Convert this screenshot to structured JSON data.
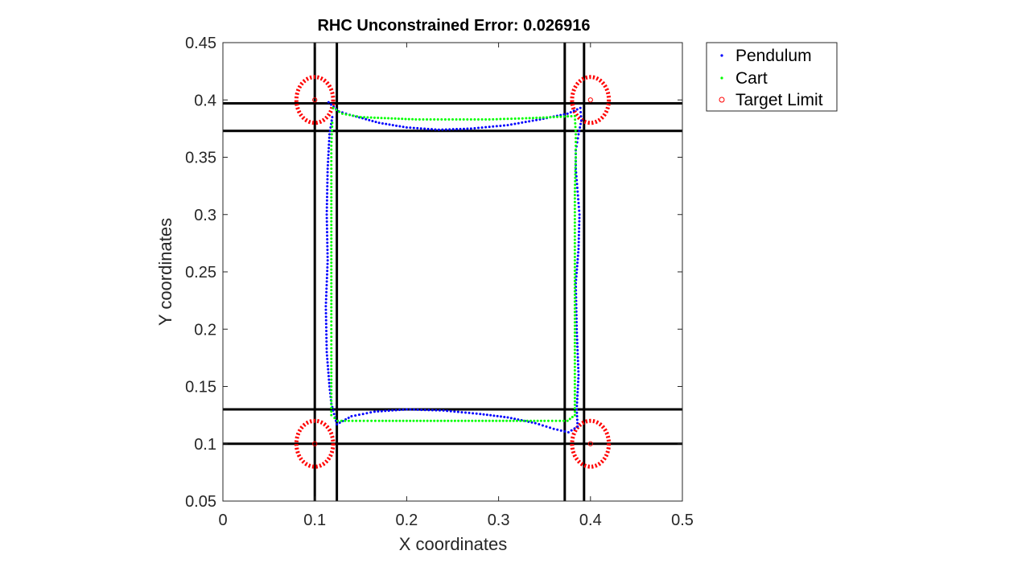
{
  "chart_data": {
    "type": "scatter",
    "title": "RHC Unconstrained Error: 0.026916",
    "xlabel": "X coordinates",
    "ylabel": "Y coordinates",
    "xlim": [
      0,
      0.5
    ],
    "ylim": [
      0.05,
      0.45
    ],
    "xticks": [
      "0",
      "0.1",
      "0.2",
      "0.3",
      "0.4",
      "0.5"
    ],
    "yticks": [
      "0.05",
      "0.1",
      "0.15",
      "0.2",
      "0.25",
      "0.3",
      "0.35",
      "0.4",
      "0.45"
    ],
    "grid": false,
    "legend_position": "outside-top-right",
    "colors": {
      "pendulum": "#0000ff",
      "cart": "#00ff00",
      "target": "#ff0000",
      "boundary": "#000000",
      "axes": "#262626"
    },
    "boundary_lines": {
      "vertical_x": [
        0.1,
        0.124,
        0.372,
        0.393
      ],
      "horizontal_y": [
        0.1,
        0.13,
        0.373,
        0.397
      ]
    },
    "targets": [
      {
        "x": 0.1,
        "y": 0.4,
        "radius": 0.02
      },
      {
        "x": 0.4,
        "y": 0.4,
        "radius": 0.02
      },
      {
        "x": 0.4,
        "y": 0.1,
        "radius": 0.02
      },
      {
        "x": 0.1,
        "y": 0.1,
        "radius": 0.02
      }
    ],
    "series": [
      {
        "name": "Pendulum",
        "marker": "dot",
        "points": [
          [
            0.115,
            0.398
          ],
          [
            0.126,
            0.39
          ],
          [
            0.138,
            0.387
          ],
          [
            0.152,
            0.384
          ],
          [
            0.17,
            0.38
          ],
          [
            0.2,
            0.376
          ],
          [
            0.235,
            0.374
          ],
          [
            0.27,
            0.375
          ],
          [
            0.31,
            0.378
          ],
          [
            0.345,
            0.383
          ],
          [
            0.375,
            0.388
          ],
          [
            0.389,
            0.393
          ],
          [
            0.39,
            0.382
          ],
          [
            0.387,
            0.37
          ],
          [
            0.384,
            0.356
          ],
          [
            0.384,
            0.34
          ],
          [
            0.386,
            0.32
          ],
          [
            0.388,
            0.3
          ],
          [
            0.387,
            0.27
          ],
          [
            0.384,
            0.24
          ],
          [
            0.385,
            0.2
          ],
          [
            0.387,
            0.16
          ],
          [
            0.385,
            0.13
          ],
          [
            0.386,
            0.115
          ],
          [
            0.376,
            0.11
          ],
          [
            0.36,
            0.113
          ],
          [
            0.34,
            0.118
          ],
          [
            0.31,
            0.123
          ],
          [
            0.28,
            0.126
          ],
          [
            0.24,
            0.129
          ],
          [
            0.2,
            0.13
          ],
          [
            0.165,
            0.128
          ],
          [
            0.14,
            0.124
          ],
          [
            0.124,
            0.117
          ],
          [
            0.118,
            0.135
          ],
          [
            0.116,
            0.15
          ],
          [
            0.113,
            0.18
          ],
          [
            0.112,
            0.22
          ],
          [
            0.114,
            0.26
          ],
          [
            0.113,
            0.3
          ],
          [
            0.114,
            0.34
          ],
          [
            0.116,
            0.37
          ],
          [
            0.119,
            0.385
          ]
        ]
      },
      {
        "name": "Cart",
        "marker": "dot",
        "points": [
          [
            0.12,
            0.393
          ],
          [
            0.13,
            0.388
          ],
          [
            0.15,
            0.385
          ],
          [
            0.18,
            0.384
          ],
          [
            0.21,
            0.383
          ],
          [
            0.25,
            0.383
          ],
          [
            0.29,
            0.383
          ],
          [
            0.33,
            0.384
          ],
          [
            0.36,
            0.385
          ],
          [
            0.383,
            0.386
          ],
          [
            0.384,
            0.37
          ],
          [
            0.384,
            0.35
          ],
          [
            0.383,
            0.32
          ],
          [
            0.383,
            0.29
          ],
          [
            0.383,
            0.26
          ],
          [
            0.383,
            0.23
          ],
          [
            0.383,
            0.2
          ],
          [
            0.383,
            0.17
          ],
          [
            0.383,
            0.14
          ],
          [
            0.383,
            0.125
          ],
          [
            0.375,
            0.12
          ],
          [
            0.35,
            0.12
          ],
          [
            0.32,
            0.12
          ],
          [
            0.29,
            0.12
          ],
          [
            0.26,
            0.12
          ],
          [
            0.23,
            0.12
          ],
          [
            0.2,
            0.12
          ],
          [
            0.17,
            0.12
          ],
          [
            0.145,
            0.12
          ],
          [
            0.125,
            0.12
          ],
          [
            0.118,
            0.125
          ],
          [
            0.118,
            0.15
          ],
          [
            0.118,
            0.18
          ],
          [
            0.118,
            0.21
          ],
          [
            0.118,
            0.24
          ],
          [
            0.118,
            0.27
          ],
          [
            0.118,
            0.3
          ],
          [
            0.118,
            0.33
          ],
          [
            0.118,
            0.36
          ],
          [
            0.119,
            0.38
          ]
        ]
      },
      {
        "name": "Target Limit",
        "marker": "circle"
      }
    ]
  }
}
